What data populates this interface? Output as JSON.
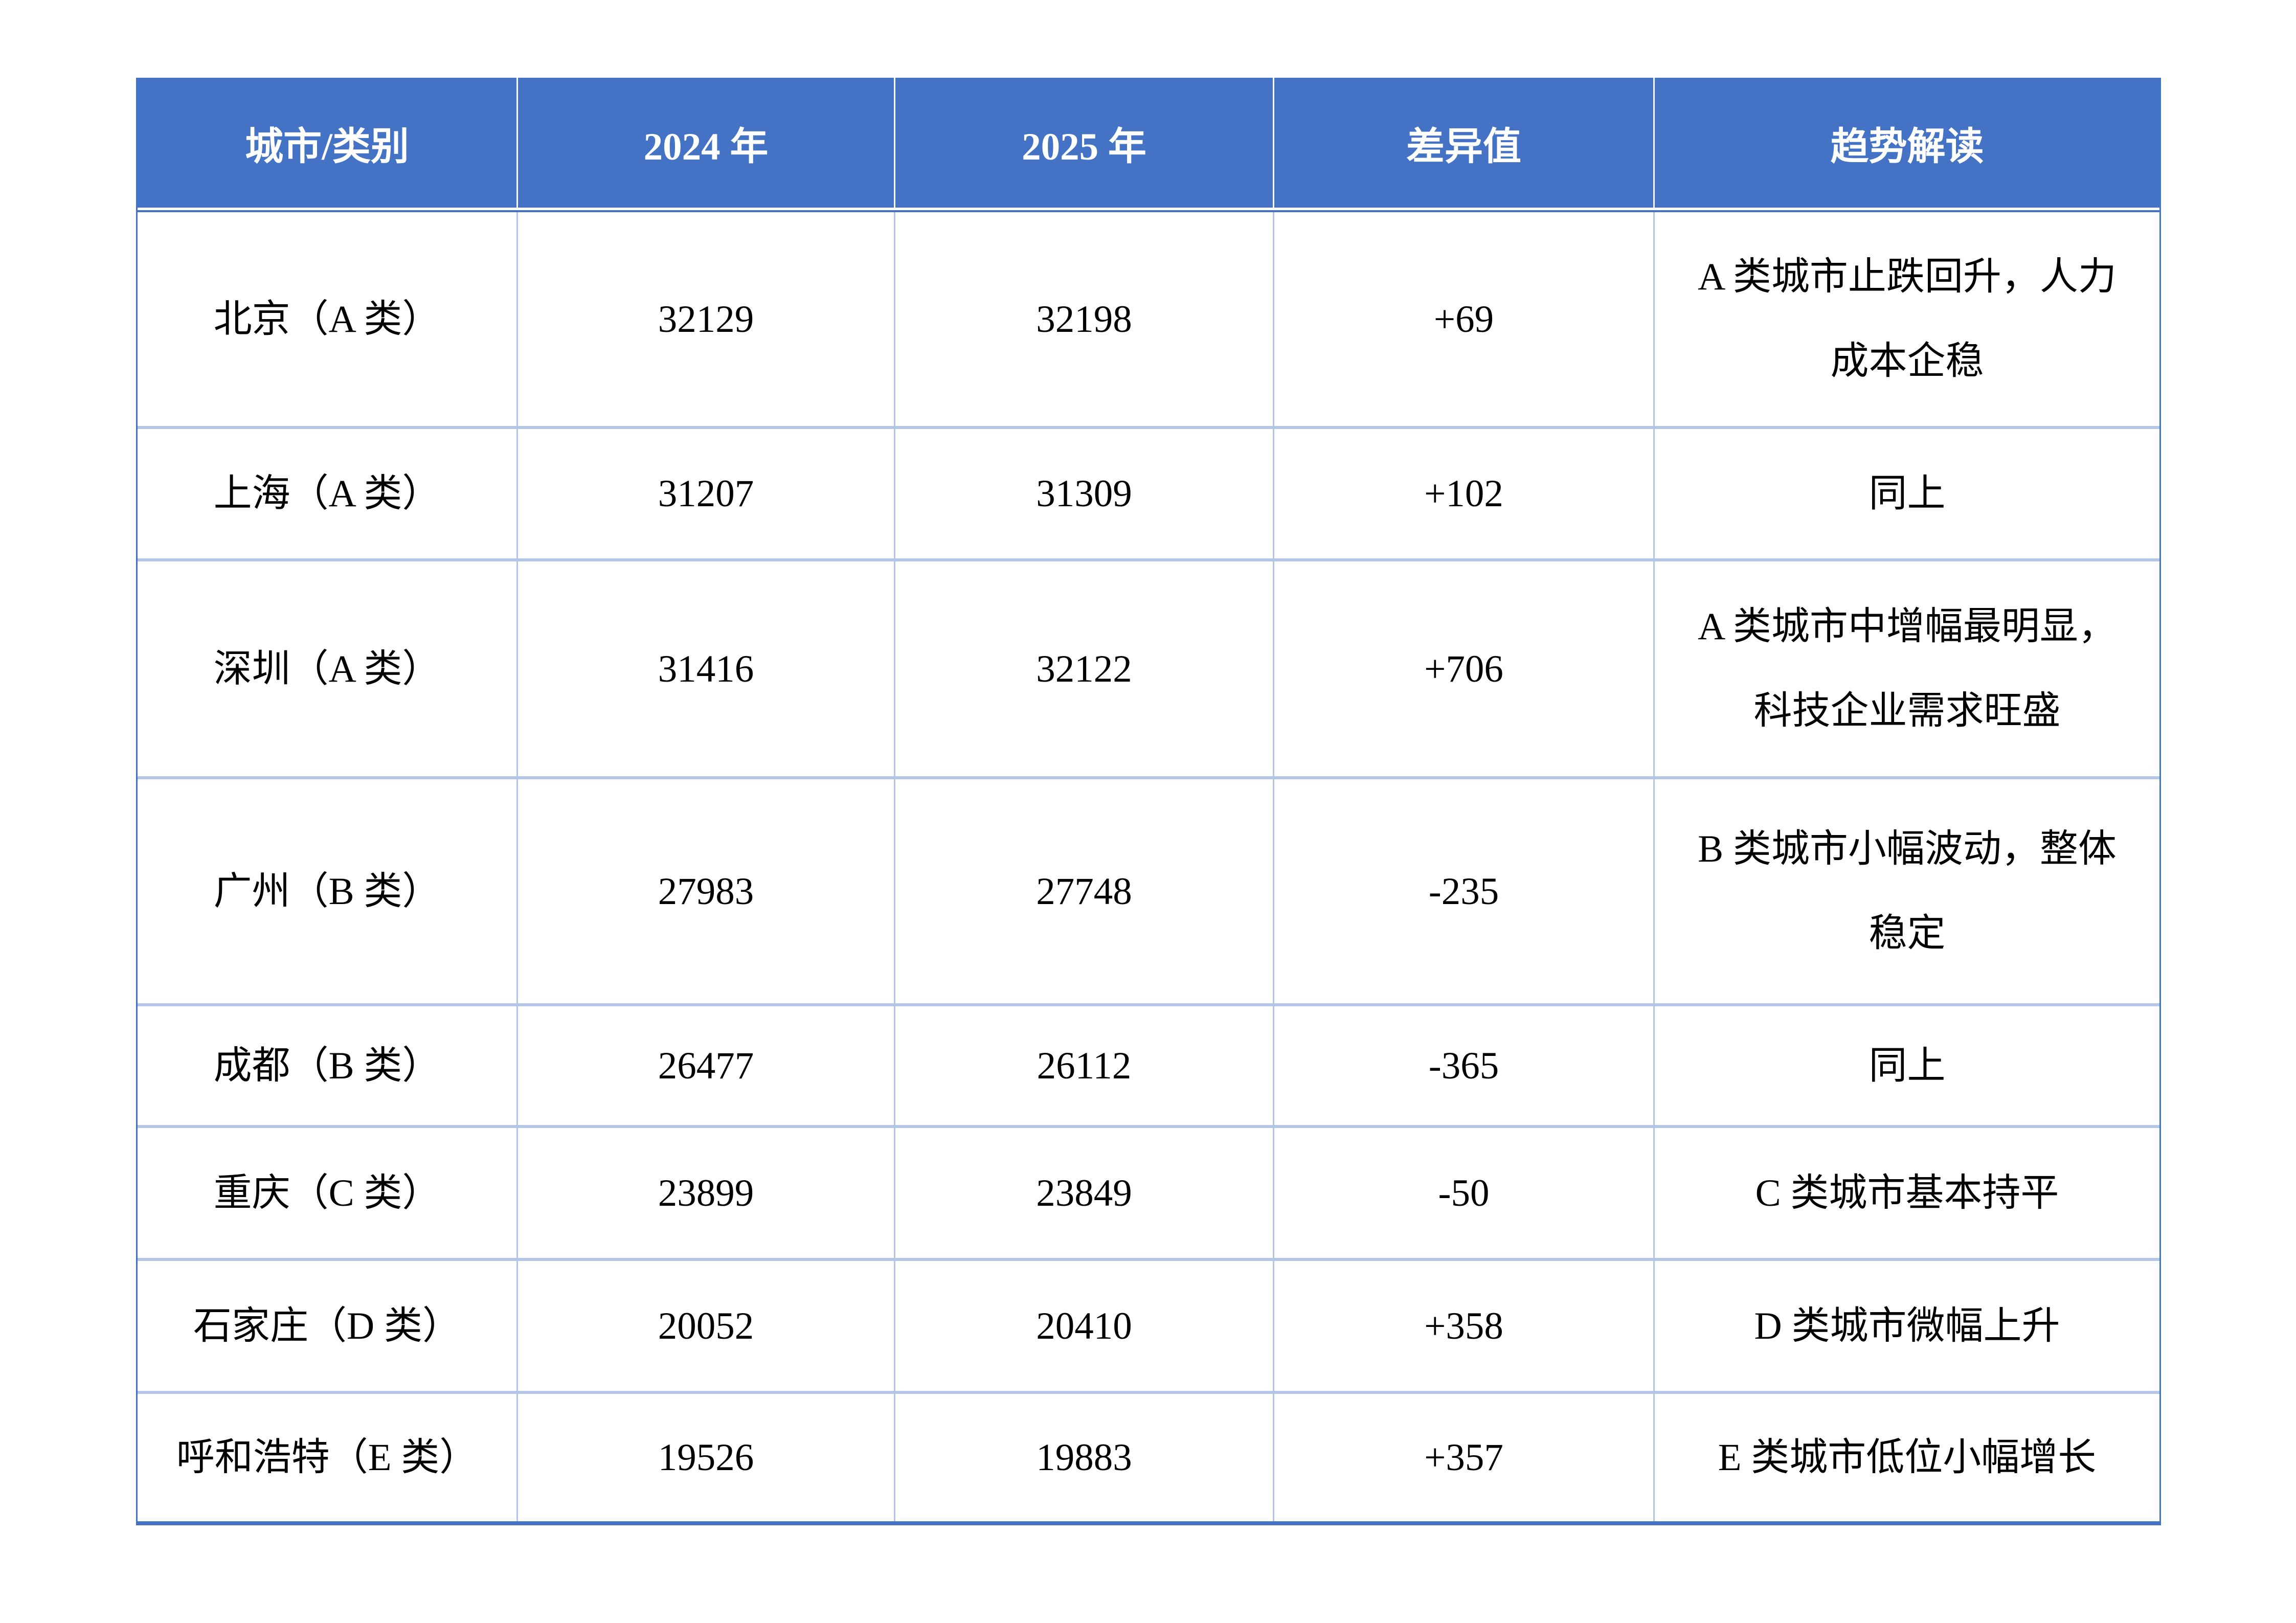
{
  "table": {
    "header": {
      "columns": [
        "城市/类别",
        "2024 年",
        "2025 年",
        "差异值",
        "趋势解读"
      ]
    },
    "rows": [
      {
        "city": "北京（A 类）",
        "y2024": "32129",
        "y2025": "32198",
        "diff": "+69",
        "trend": "A 类城市止跌回升，人力成本企稳"
      },
      {
        "city": "上海（A 类）",
        "y2024": "31207",
        "y2025": "31309",
        "diff": "+102",
        "trend": "同上"
      },
      {
        "city": "深圳（A 类）",
        "y2024": "31416",
        "y2025": "32122",
        "diff": "+706",
        "trend": "A 类城市中增幅最明显，科技企业需求旺盛"
      },
      {
        "city": "广州（B 类）",
        "y2024": "27983",
        "y2025": "27748",
        "diff": "-235",
        "trend": "B 类城市小幅波动，整体稳定"
      },
      {
        "city": "成都（B 类）",
        "y2024": "26477",
        "y2025": "26112",
        "diff": "-365",
        "trend": "同上"
      },
      {
        "city": "重庆（C 类）",
        "y2024": "23899",
        "y2025": "23849",
        "diff": "-50",
        "trend": "C 类城市基本持平"
      },
      {
        "city": "石家庄（D 类）",
        "y2024": "20052",
        "y2025": "20410",
        "diff": "+358",
        "trend": "D 类城市微幅上升"
      },
      {
        "city": "呼和浩特（E 类）",
        "y2024": "19526",
        "y2025": "19883",
        "diff": "+357",
        "trend": "E 类城市低位小幅增长"
      }
    ]
  },
  "colors": {
    "header_bg": "#4472C4",
    "header_text": "#FFFFFF",
    "grid_line": "#B4C6E7",
    "outer_border": "#4472C4",
    "body_text": "#000000",
    "page_bg": "#FFFFFF"
  }
}
